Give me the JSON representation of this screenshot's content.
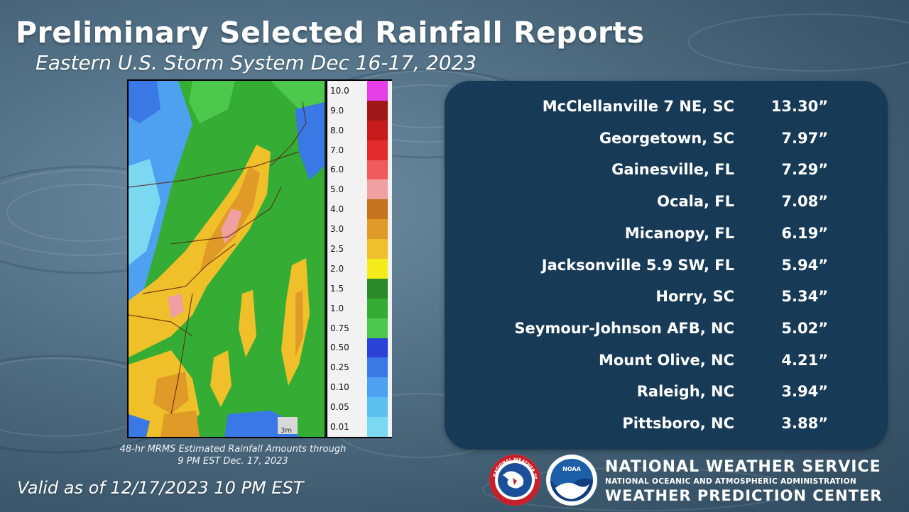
{
  "title": "Preliminary Selected Rainfall Reports",
  "subtitle": "Eastern U.S. Storm System Dec 16-17, 2023",
  "map": {
    "caption_line1": "48-hr MRMS Estimated Rainfall Amounts through",
    "caption_line2": "9 PM EST Dec. 17, 2023",
    "legend": [
      {
        "label": "10.0",
        "color": "#e63ee8"
      },
      {
        "label": "9.0",
        "color": "#a01818"
      },
      {
        "label": "8.0",
        "color": "#c81c1c"
      },
      {
        "label": "7.0",
        "color": "#e32b2b"
      },
      {
        "label": "6.0",
        "color": "#ef5a5a"
      },
      {
        "label": "5.0",
        "color": "#f0a0a0"
      },
      {
        "label": "4.0",
        "color": "#c5731e"
      },
      {
        "label": "3.0",
        "color": "#e09a28"
      },
      {
        "label": "2.5",
        "color": "#f0c02a"
      },
      {
        "label": "2.0",
        "color": "#f6ec1c"
      },
      {
        "label": "1.5",
        "color": "#2a8a2a"
      },
      {
        "label": "1.0",
        "color": "#35ad35"
      },
      {
        "label": "0.75",
        "color": "#4cc84c"
      },
      {
        "label": "0.50",
        "color": "#2a42d8"
      },
      {
        "label": "0.25",
        "color": "#3a78e6"
      },
      {
        "label": "0.10",
        "color": "#4ea0f0"
      },
      {
        "label": "0.05",
        "color": "#5cc0f0"
      },
      {
        "label": "0.01",
        "color": "#7ad8f0"
      }
    ],
    "corner_label": "3m"
  },
  "reports": [
    {
      "location": "McClellanville 7 NE, SC",
      "amount": "13.30”"
    },
    {
      "location": "Georgetown, SC",
      "amount": "7.97”"
    },
    {
      "location": "Gainesville, FL",
      "amount": "7.29”"
    },
    {
      "location": "Ocala, FL",
      "amount": "7.08”"
    },
    {
      "location": "Micanopy, FL",
      "amount": "6.19”"
    },
    {
      "location": "Jacksonville 5.9 SW, FL",
      "amount": "5.94”"
    },
    {
      "location": "Horry, SC",
      "amount": "5.34”"
    },
    {
      "location": "Seymour-Johnson AFB, NC",
      "amount": "5.02”"
    },
    {
      "location": "Mount Olive, NC",
      "amount": "4.21”"
    },
    {
      "location": "Raleigh, NC",
      "amount": "3.94”"
    },
    {
      "location": "Pittsboro, NC",
      "amount": "3.88”"
    }
  ],
  "valid": "Valid as of 12/17/2023  10 PM EST",
  "agency": {
    "line1": "NATIONAL WEATHER SERVICE",
    "line2": "NATIONAL OCEANIC AND ATMOSPHERIC ADMINISTRATION",
    "line3": "WEATHER PREDICTION CENTER",
    "nws_logo_text": "NATIONAL WEATHER SERVICE",
    "noaa_logo_text": "NOAA"
  }
}
